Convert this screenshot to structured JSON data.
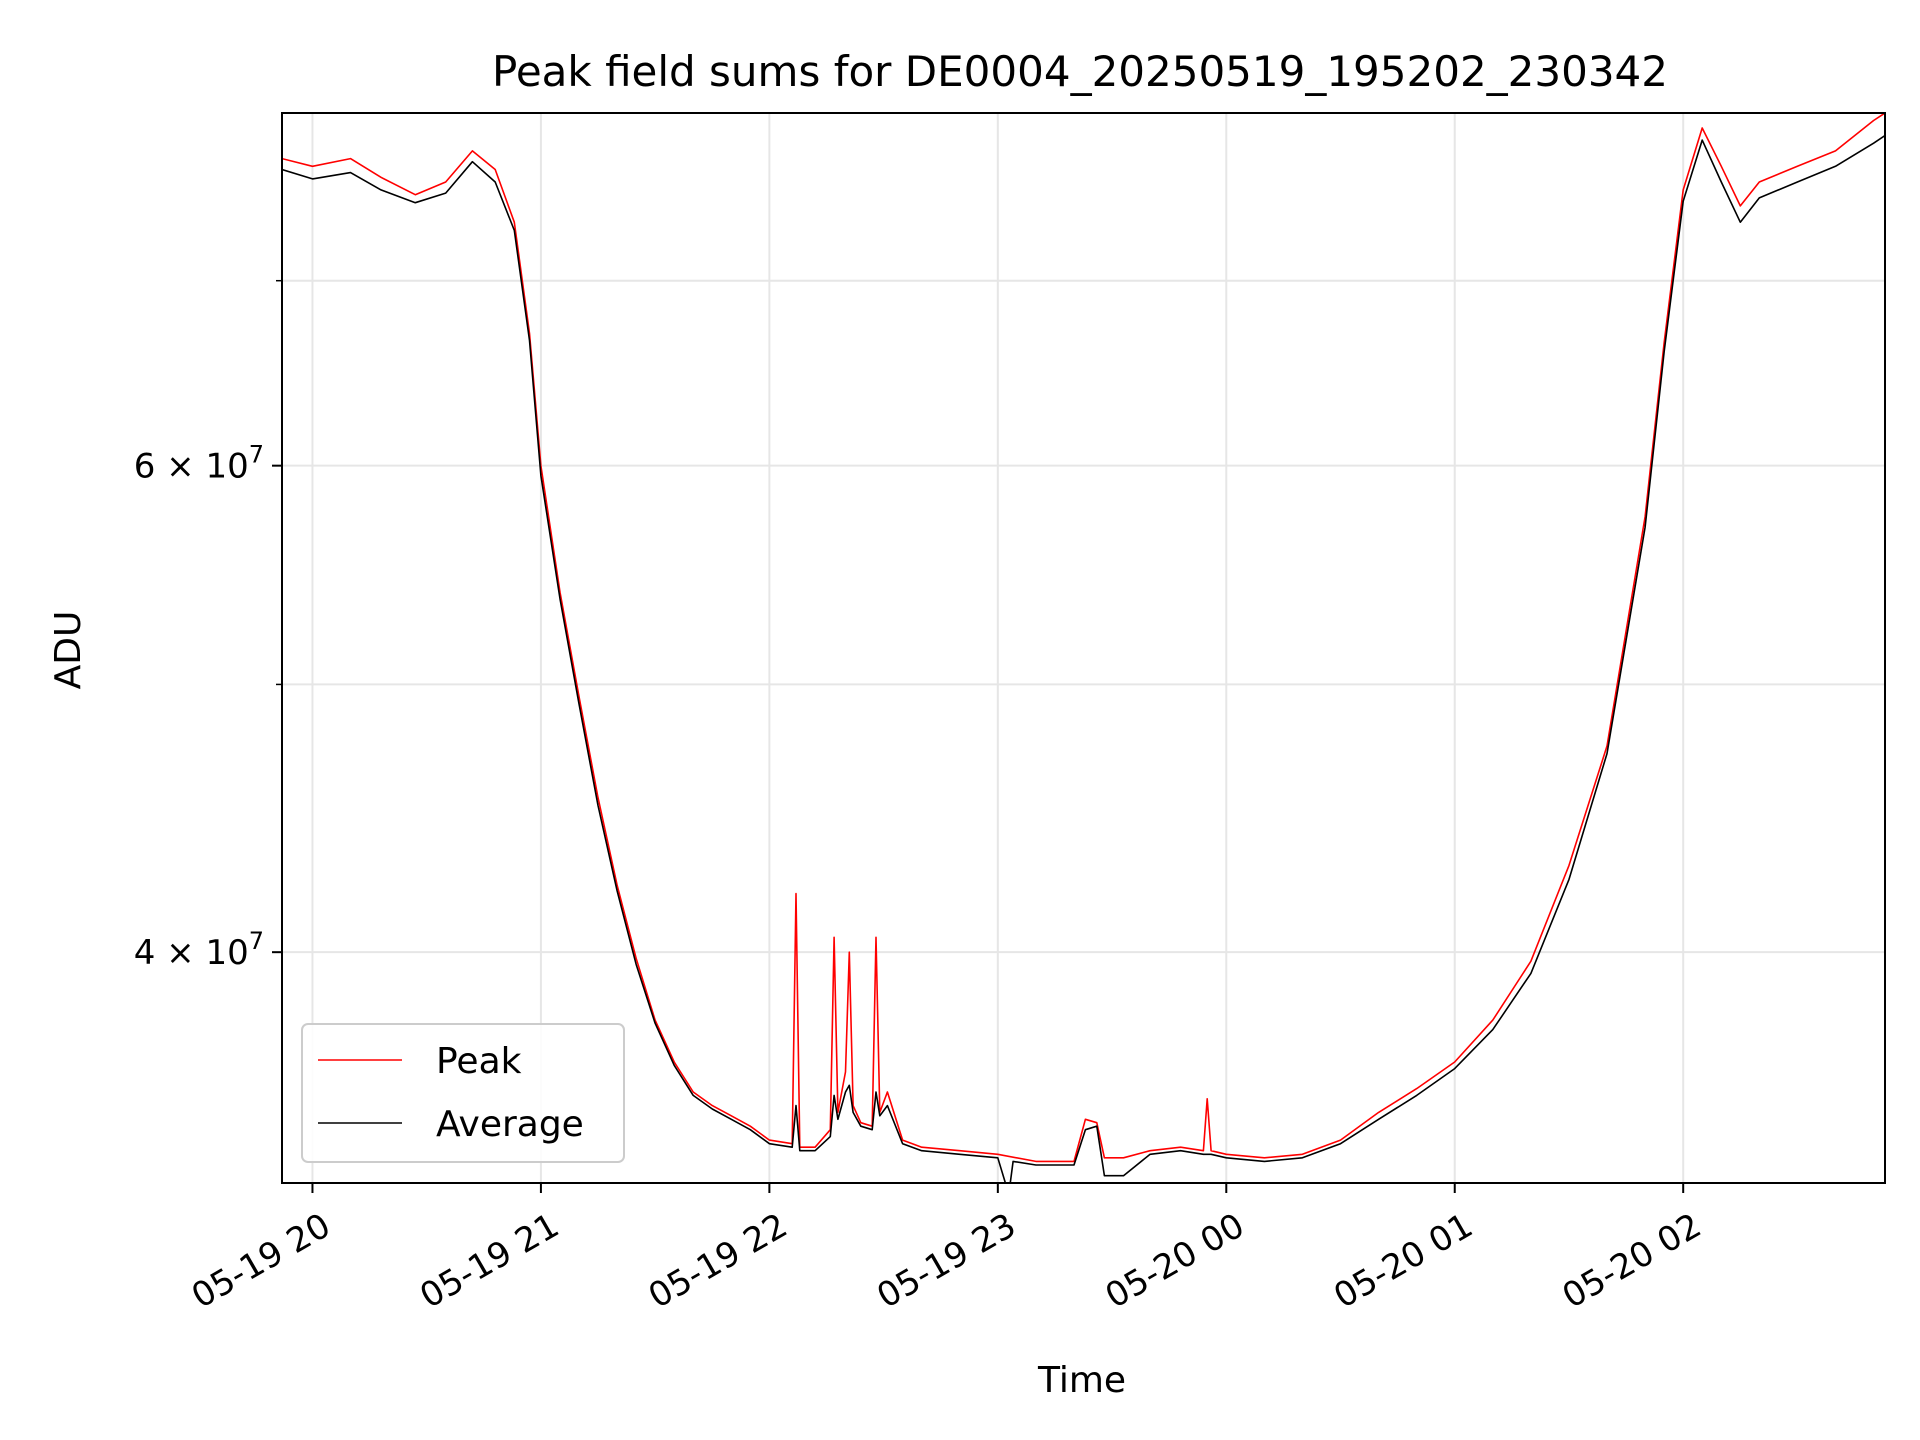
{
  "chart_data": {
    "type": "line",
    "title": "Peak field sums for DE0004_20250519_195202_230342",
    "xlabel": "Time",
    "ylabel": "ADU",
    "y_scale": "log",
    "ylim": [
      33000000,
      80500000
    ],
    "xlim": [
      "2025-05-19 19:52:00",
      "2025-05-20 02:53:00"
    ],
    "grid": true,
    "legend_position": "lower left",
    "x_ticks": [
      {
        "t": "2025-05-19 20:00",
        "label": "05-19 20"
      },
      {
        "t": "2025-05-19 21:00",
        "label": "05-19 21"
      },
      {
        "t": "2025-05-19 22:00",
        "label": "05-19 22"
      },
      {
        "t": "2025-05-19 23:00",
        "label": "05-19 23"
      },
      {
        "t": "2025-05-20 00:00",
        "label": "05-20 00"
      },
      {
        "t": "2025-05-20 01:00",
        "label": "05-20 01"
      },
      {
        "t": "2025-05-20 02:00",
        "label": "05-20 02"
      }
    ],
    "y_ticks_major": [
      {
        "v": 40000000,
        "mant": "4",
        "exp": "7"
      },
      {
        "v": 60000000,
        "mant": "6",
        "exp": "7"
      }
    ],
    "y_ticks_minor": [
      50000000,
      70000000
    ],
    "series": [
      {
        "name": "Peak",
        "color": "#ff0000",
        "x": [
          "2025-05-19 19:52",
          "2025-05-19 20:00",
          "2025-05-19 20:10",
          "2025-05-19 20:18",
          "2025-05-19 20:27",
          "2025-05-19 20:35",
          "2025-05-19 20:42",
          "2025-05-19 20:48",
          "2025-05-19 20:53",
          "2025-05-19 20:57",
          "2025-05-19 21:00",
          "2025-05-19 21:05",
          "2025-05-19 21:10",
          "2025-05-19 21:15",
          "2025-05-19 21:20",
          "2025-05-19 21:25",
          "2025-05-19 21:30",
          "2025-05-19 21:35",
          "2025-05-19 21:40",
          "2025-05-19 21:45",
          "2025-05-19 21:50",
          "2025-05-19 21:55",
          "2025-05-19 22:00",
          "2025-05-19 22:06",
          "2025-05-19 22:07",
          "2025-05-19 22:08",
          "2025-05-19 22:12",
          "2025-05-19 22:16",
          "2025-05-19 22:17",
          "2025-05-19 22:18",
          "2025-05-19 22:20",
          "2025-05-19 22:21",
          "2025-05-19 22:22",
          "2025-05-19 22:24",
          "2025-05-19 22:27",
          "2025-05-19 22:28",
          "2025-05-19 22:29",
          "2025-05-19 22:31",
          "2025-05-19 22:35",
          "2025-05-19 22:40",
          "2025-05-19 22:50",
          "2025-05-19 23:00",
          "2025-05-19 23:10",
          "2025-05-19 23:20",
          "2025-05-19 23:23",
          "2025-05-19 23:26",
          "2025-05-19 23:28",
          "2025-05-19 23:33",
          "2025-05-19 23:40",
          "2025-05-19 23:48",
          "2025-05-19 23:54",
          "2025-05-19 23:55",
          "2025-05-19 23:56",
          "2025-05-20 00:00",
          "2025-05-20 00:10",
          "2025-05-20 00:20",
          "2025-05-20 00:30",
          "2025-05-20 00:40",
          "2025-05-20 00:50",
          "2025-05-20 01:00",
          "2025-05-20 01:10",
          "2025-05-20 01:20",
          "2025-05-20 01:30",
          "2025-05-20 01:40",
          "2025-05-20 01:50",
          "2025-05-20 01:55",
          "2025-05-20 02:00",
          "2025-05-20 02:05",
          "2025-05-20 02:10",
          "2025-05-20 02:15",
          "2025-05-20 02:20",
          "2025-05-20 02:30",
          "2025-05-20 02:40",
          "2025-05-20 02:50",
          "2025-05-20 02:53"
        ],
        "y": [
          77500000,
          77000000,
          77500000,
          76300000,
          75200000,
          76000000,
          78000000,
          76800000,
          73500000,
          67000000,
          60000000,
          54000000,
          49500000,
          45500000,
          42300000,
          39800000,
          37800000,
          36500000,
          35600000,
          35200000,
          34900000,
          34600000,
          34200000,
          34100000,
          42000000,
          34000000,
          34000000,
          34500000,
          40500000,
          35000000,
          36200000,
          40000000,
          35200000,
          34700000,
          34600000,
          40500000,
          35000000,
          35600000,
          34200000,
          34000000,
          33900000,
          33800000,
          33600000,
          33600000,
          34800000,
          34700000,
          33700000,
          33700000,
          33900000,
          34000000,
          33900000,
          35400000,
          33900000,
          33800000,
          33700000,
          33800000,
          34200000,
          35000000,
          35700000,
          36500000,
          37800000,
          39700000,
          43000000,
          47500000,
          57500000,
          66500000,
          75500000,
          79500000,
          77000000,
          74500000,
          76000000,
          77000000,
          78000000,
          80000000,
          80500000
        ]
      },
      {
        "name": "Average",
        "color": "#000000",
        "x": [
          "2025-05-19 19:52",
          "2025-05-19 20:00",
          "2025-05-19 20:10",
          "2025-05-19 20:18",
          "2025-05-19 20:27",
          "2025-05-19 20:35",
          "2025-05-19 20:42",
          "2025-05-19 20:48",
          "2025-05-19 20:53",
          "2025-05-19 20:57",
          "2025-05-19 21:00",
          "2025-05-19 21:05",
          "2025-05-19 21:10",
          "2025-05-19 21:15",
          "2025-05-19 21:20",
          "2025-05-19 21:25",
          "2025-05-19 21:30",
          "2025-05-19 21:35",
          "2025-05-19 21:40",
          "2025-05-19 21:45",
          "2025-05-19 21:50",
          "2025-05-19 21:55",
          "2025-05-19 22:00",
          "2025-05-19 22:06",
          "2025-05-19 22:07",
          "2025-05-19 22:08",
          "2025-05-19 22:12",
          "2025-05-19 22:16",
          "2025-05-19 22:17",
          "2025-05-19 22:18",
          "2025-05-19 22:20",
          "2025-05-19 22:21",
          "2025-05-19 22:22",
          "2025-05-19 22:24",
          "2025-05-19 22:27",
          "2025-05-19 22:28",
          "2025-05-19 22:29",
          "2025-05-19 22:31",
          "2025-05-19 22:35",
          "2025-05-19 22:40",
          "2025-05-19 22:50",
          "2025-05-19 23:00",
          "2025-05-19 23:02",
          "2025-05-19 23:03",
          "2025-05-19 23:04",
          "2025-05-19 23:10",
          "2025-05-19 23:20",
          "2025-05-19 23:23",
          "2025-05-19 23:26",
          "2025-05-19 23:28",
          "2025-05-19 23:33",
          "2025-05-19 23:40",
          "2025-05-19 23:48",
          "2025-05-19 23:54",
          "2025-05-19 23:55",
          "2025-05-19 23:56",
          "2025-05-20 00:00",
          "2025-05-20 00:10",
          "2025-05-20 00:20",
          "2025-05-20 00:30",
          "2025-05-20 00:40",
          "2025-05-20 00:50",
          "2025-05-20 01:00",
          "2025-05-20 01:10",
          "2025-05-20 01:20",
          "2025-05-20 01:30",
          "2025-05-20 01:40",
          "2025-05-20 01:50",
          "2025-05-20 01:55",
          "2025-05-20 02:00",
          "2025-05-20 02:05",
          "2025-05-20 02:10",
          "2025-05-20 02:15",
          "2025-05-20 02:20",
          "2025-05-20 02:30",
          "2025-05-20 02:40",
          "2025-05-20 02:50",
          "2025-05-20 02:53"
        ],
        "y": [
          76800000,
          76200000,
          76600000,
          75500000,
          74700000,
          75300000,
          77300000,
          76000000,
          73000000,
          66600000,
          59500000,
          53700000,
          49200000,
          45200000,
          42100000,
          39600000,
          37700000,
          36400000,
          35500000,
          35100000,
          34800000,
          34500000,
          34100000,
          34000000,
          35200000,
          33900000,
          33900000,
          34300000,
          35500000,
          34800000,
          35600000,
          35800000,
          35000000,
          34600000,
          34500000,
          35600000,
          34900000,
          35200000,
          34100000,
          33900000,
          33800000,
          33700000,
          33000000,
          32800000,
          33600000,
          33500000,
          33500000,
          34500000,
          34600000,
          33200000,
          33200000,
          33800000,
          33900000,
          33800000,
          33800000,
          33800000,
          33700000,
          33600000,
          33700000,
          34100000,
          34800000,
          35500000,
          36300000,
          37500000,
          39300000,
          42500000,
          47200000,
          57000000,
          66000000,
          74800000,
          78700000,
          76000000,
          73500000,
          75000000,
          76000000,
          77000000,
          78500000,
          79000000
        ]
      }
    ]
  }
}
